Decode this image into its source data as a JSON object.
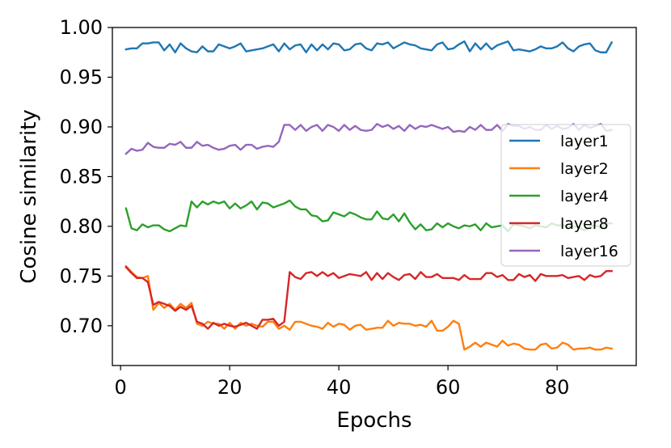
{
  "chart_data": {
    "type": "line",
    "title": "",
    "xlabel": "Epochs",
    "ylabel": "Cosine similarity",
    "xlim": [
      -1.5,
      94.5
    ],
    "ylim": [
      0.66,
      1.0
    ],
    "xticks": [
      0,
      20,
      40,
      60,
      80
    ],
    "xtick_labels": [
      "0",
      "20",
      "40",
      "60",
      "80"
    ],
    "yticks": [
      0.7,
      0.75,
      0.8,
      0.85,
      0.9,
      0.95,
      1.0
    ],
    "ytick_labels": [
      "0.70",
      "0.75",
      "0.80",
      "0.85",
      "0.90",
      "0.95",
      "1.00"
    ],
    "grid": false,
    "legend_position": "center-right",
    "x": [
      1,
      2,
      3,
      4,
      5,
      6,
      7,
      8,
      9,
      10,
      11,
      12,
      13,
      14,
      15,
      16,
      17,
      18,
      19,
      20,
      21,
      22,
      23,
      24,
      25,
      26,
      27,
      28,
      29,
      30,
      31,
      32,
      33,
      34,
      35,
      36,
      37,
      38,
      39,
      40,
      41,
      42,
      43,
      44,
      45,
      46,
      47,
      48,
      49,
      50,
      51,
      52,
      53,
      54,
      55,
      56,
      57,
      58,
      59,
      60,
      61,
      62,
      63,
      64,
      65,
      66,
      67,
      68,
      69,
      70,
      71,
      72,
      73,
      74,
      75,
      76,
      77,
      78,
      79,
      80,
      81,
      82,
      83,
      84,
      85,
      86,
      87,
      88,
      89,
      90
    ],
    "series": [
      {
        "name": "layer1",
        "color": "#1f77b4",
        "values": [
          0.978,
          0.979,
          0.979,
          0.984,
          0.984,
          0.985,
          0.985,
          0.977,
          0.983,
          0.975,
          0.984,
          0.979,
          0.976,
          0.975,
          0.981,
          0.976,
          0.976,
          0.983,
          0.981,
          0.979,
          0.981,
          0.984,
          0.976,
          0.977,
          0.978,
          0.979,
          0.981,
          0.983,
          0.976,
          0.984,
          0.978,
          0.982,
          0.983,
          0.975,
          0.983,
          0.977,
          0.983,
          0.978,
          0.984,
          0.983,
          0.977,
          0.978,
          0.983,
          0.984,
          0.979,
          0.977,
          0.984,
          0.983,
          0.985,
          0.979,
          0.982,
          0.985,
          0.983,
          0.982,
          0.979,
          0.978,
          0.977,
          0.983,
          0.985,
          0.978,
          0.979,
          0.983,
          0.986,
          0.976,
          0.984,
          0.978,
          0.984,
          0.978,
          0.982,
          0.984,
          0.986,
          0.977,
          0.978,
          0.977,
          0.976,
          0.978,
          0.981,
          0.979,
          0.979,
          0.981,
          0.985,
          0.979,
          0.976,
          0.981,
          0.983,
          0.984,
          0.977,
          0.975,
          0.975,
          0.985
        ]
      },
      {
        "name": "layer2",
        "color": "#ff7f0e",
        "values": [
          0.76,
          0.754,
          0.749,
          0.748,
          0.75,
          0.716,
          0.723,
          0.718,
          0.722,
          0.716,
          0.722,
          0.718,
          0.723,
          0.702,
          0.7,
          0.704,
          0.702,
          0.702,
          0.697,
          0.703,
          0.697,
          0.703,
          0.7,
          0.702,
          0.7,
          0.699,
          0.704,
          0.704,
          0.697,
          0.7,
          0.696,
          0.704,
          0.704,
          0.702,
          0.7,
          0.699,
          0.697,
          0.703,
          0.699,
          0.702,
          0.701,
          0.696,
          0.7,
          0.701,
          0.696,
          0.697,
          0.698,
          0.698,
          0.705,
          0.7,
          0.703,
          0.702,
          0.702,
          0.7,
          0.701,
          0.699,
          0.705,
          0.695,
          0.695,
          0.699,
          0.705,
          0.702,
          0.676,
          0.679,
          0.683,
          0.679,
          0.683,
          0.681,
          0.679,
          0.685,
          0.68,
          0.682,
          0.681,
          0.677,
          0.676,
          0.676,
          0.681,
          0.682,
          0.677,
          0.678,
          0.683,
          0.681,
          0.676,
          0.677,
          0.677,
          0.678,
          0.676,
          0.676,
          0.678,
          0.677
        ]
      },
      {
        "name": "layer4",
        "color": "#2ca02c",
        "values": [
          0.818,
          0.798,
          0.796,
          0.802,
          0.799,
          0.801,
          0.801,
          0.797,
          0.795,
          0.798,
          0.801,
          0.8,
          0.825,
          0.819,
          0.825,
          0.822,
          0.825,
          0.823,
          0.825,
          0.818,
          0.823,
          0.818,
          0.821,
          0.825,
          0.817,
          0.824,
          0.823,
          0.819,
          0.821,
          0.823,
          0.826,
          0.82,
          0.817,
          0.817,
          0.811,
          0.81,
          0.805,
          0.806,
          0.814,
          0.812,
          0.81,
          0.814,
          0.812,
          0.809,
          0.807,
          0.807,
          0.815,
          0.808,
          0.807,
          0.812,
          0.805,
          0.813,
          0.804,
          0.797,
          0.802,
          0.796,
          0.797,
          0.803,
          0.799,
          0.803,
          0.8,
          0.798,
          0.801,
          0.8,
          0.802,
          0.796,
          0.803,
          0.799,
          0.8,
          0.801,
          0.795,
          0.802,
          0.801,
          0.8,
          0.798,
          0.801,
          0.8,
          0.799,
          0.803,
          0.801,
          0.801,
          0.8,
          0.8,
          0.799,
          0.796,
          0.8,
          0.801,
          0.799,
          0.803,
          0.803
        ]
      },
      {
        "name": "layer8",
        "color": "#d62728",
        "values": [
          0.759,
          0.753,
          0.748,
          0.748,
          0.744,
          0.721,
          0.724,
          0.722,
          0.72,
          0.715,
          0.719,
          0.716,
          0.72,
          0.704,
          0.702,
          0.697,
          0.703,
          0.7,
          0.702,
          0.7,
          0.699,
          0.701,
          0.703,
          0.7,
          0.697,
          0.706,
          0.706,
          0.707,
          0.7,
          0.704,
          0.754,
          0.749,
          0.747,
          0.753,
          0.754,
          0.75,
          0.754,
          0.75,
          0.753,
          0.748,
          0.75,
          0.752,
          0.751,
          0.75,
          0.754,
          0.746,
          0.753,
          0.747,
          0.753,
          0.749,
          0.746,
          0.751,
          0.752,
          0.747,
          0.754,
          0.749,
          0.749,
          0.752,
          0.748,
          0.748,
          0.748,
          0.746,
          0.751,
          0.747,
          0.747,
          0.747,
          0.753,
          0.753,
          0.749,
          0.751,
          0.746,
          0.746,
          0.752,
          0.749,
          0.751,
          0.745,
          0.752,
          0.75,
          0.75,
          0.75,
          0.751,
          0.748,
          0.749,
          0.75,
          0.746,
          0.751,
          0.749,
          0.75,
          0.755,
          0.755
        ]
      },
      {
        "name": "layer16",
        "color": "#9467bd",
        "values": [
          0.873,
          0.878,
          0.876,
          0.877,
          0.884,
          0.88,
          0.879,
          0.879,
          0.883,
          0.882,
          0.885,
          0.879,
          0.879,
          0.885,
          0.881,
          0.882,
          0.879,
          0.877,
          0.878,
          0.881,
          0.882,
          0.877,
          0.882,
          0.882,
          0.878,
          0.88,
          0.881,
          0.88,
          0.885,
          0.902,
          0.902,
          0.897,
          0.902,
          0.896,
          0.9,
          0.902,
          0.896,
          0.902,
          0.9,
          0.896,
          0.902,
          0.897,
          0.901,
          0.897,
          0.896,
          0.897,
          0.903,
          0.9,
          0.902,
          0.898,
          0.901,
          0.896,
          0.902,
          0.898,
          0.901,
          0.9,
          0.902,
          0.9,
          0.898,
          0.9,
          0.895,
          0.896,
          0.895,
          0.9,
          0.897,
          0.902,
          0.897,
          0.897,
          0.902,
          0.896,
          0.903,
          0.901,
          0.901,
          0.898,
          0.9,
          0.897,
          0.897,
          0.902,
          0.898,
          0.901,
          0.898,
          0.899,
          0.903,
          0.897,
          0.902,
          0.899,
          0.901,
          0.903,
          0.896,
          0.897
        ]
      }
    ]
  }
}
